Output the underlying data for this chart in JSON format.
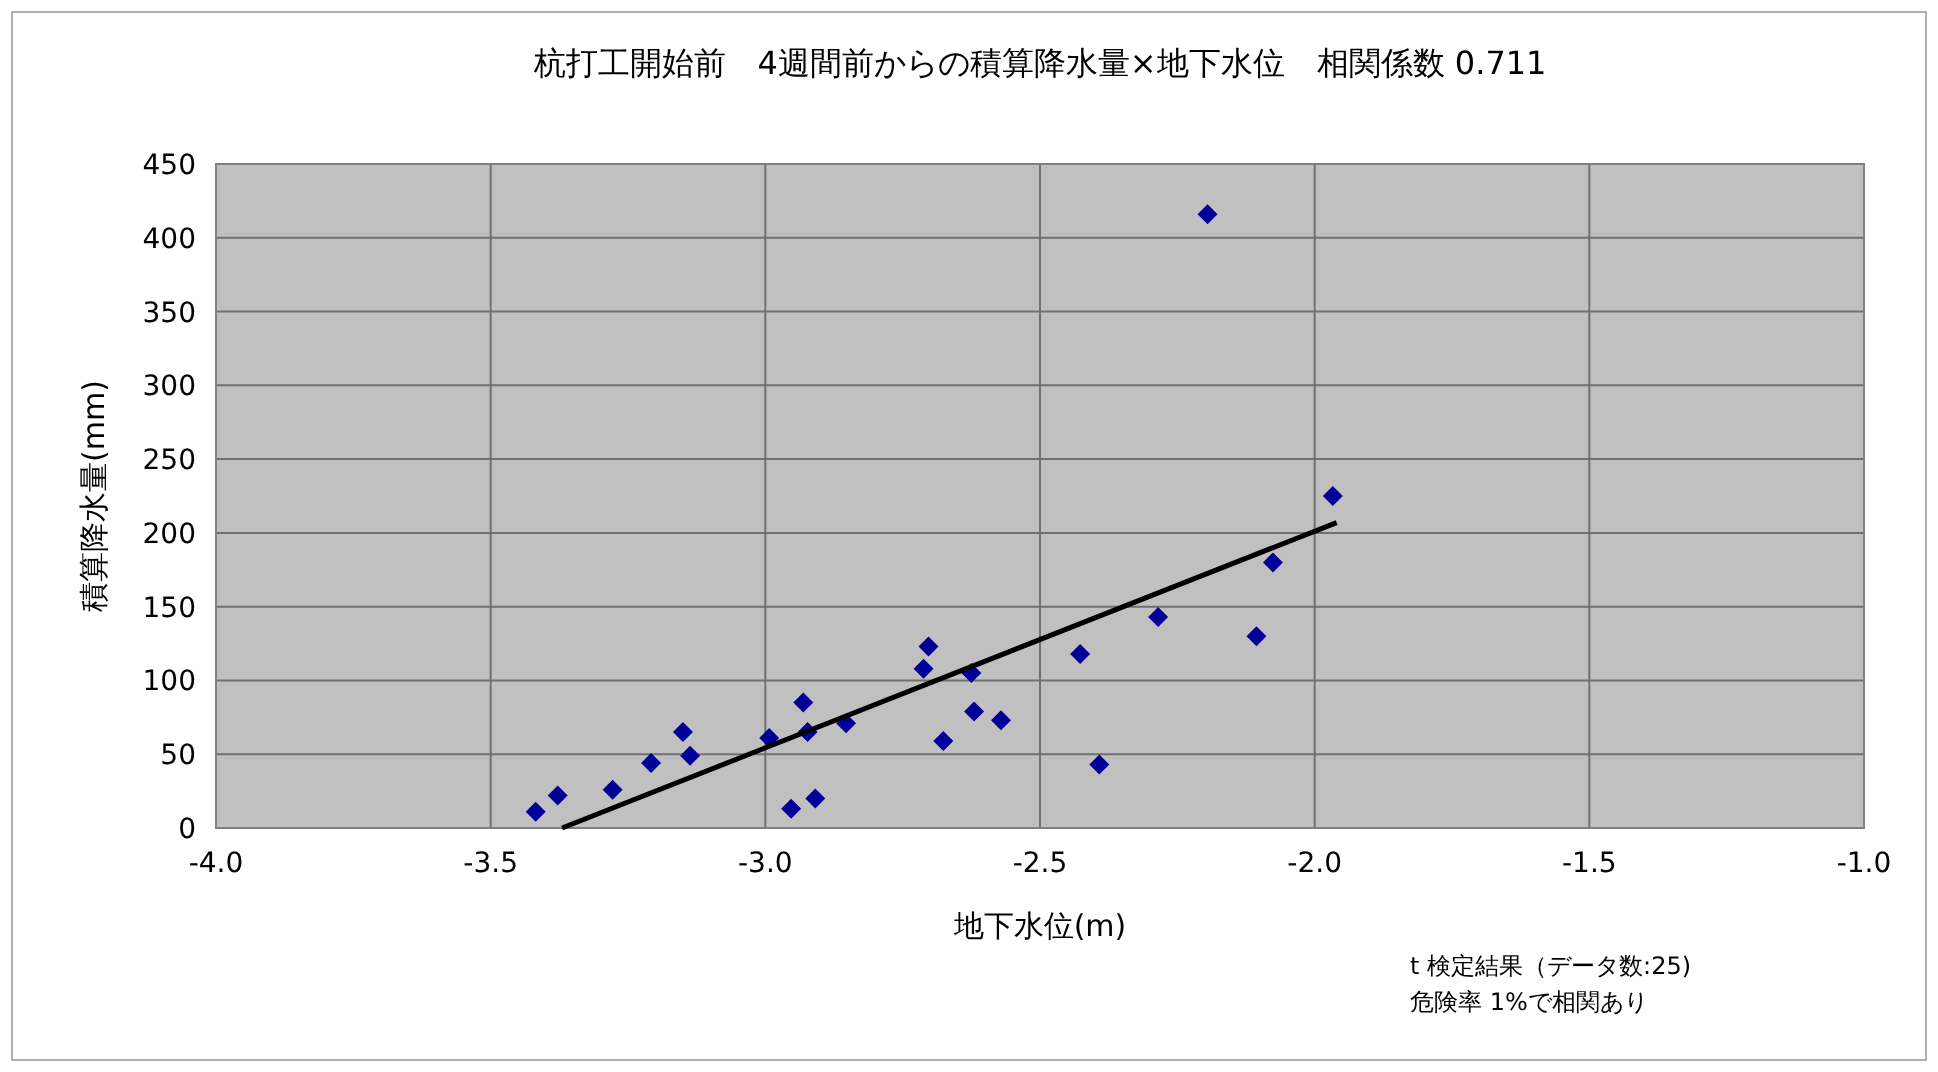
{
  "chart_data": {
    "type": "scatter",
    "title": "杭打工開始前　4週間前からの積算降水量×地下水位　相関係数 0.711",
    "xlabel": "地下水位(m)",
    "ylabel": "積算降水量(mm)",
    "annotations": [
      "t 検定結果（データ数:25)",
      "危険率 1%で相関あり"
    ],
    "x": [
      -3.418,
      -3.378,
      -3.278,
      -3.208,
      -3.15,
      -3.137,
      -2.993,
      -2.953,
      -2.931,
      -2.923,
      -2.909,
      -2.853,
      -2.712,
      -2.703,
      -2.676,
      -2.625,
      -2.62,
      -2.571,
      -2.427,
      -2.392,
      -2.285,
      -2.195,
      -2.106,
      -2.076,
      -1.967
    ],
    "series": [
      {
        "color": "#000099",
        "marker": "diamond",
        "values": [
          11,
          22,
          26,
          44,
          65,
          49,
          61,
          13,
          85,
          65,
          20,
          71,
          108,
          123,
          59,
          105,
          79,
          73,
          118,
          43,
          143,
          416,
          130,
          180,
          225
        ]
      },
      {
        "type": "line",
        "color": "#000000",
        "marker": "none",
        "x": [
          -3.37,
          -1.96
        ],
        "values": [
          0,
          207
        ]
      }
    ],
    "xlim": [
      -4,
      -1
    ],
    "xticks": [
      {
        "value": -4,
        "label": "-4.0"
      },
      {
        "value": -3.5,
        "label": "-3.5"
      },
      {
        "value": -3,
        "label": "-3.0"
      },
      {
        "value": -2.5,
        "label": "-2.5"
      },
      {
        "value": -2,
        "label": "-2.0"
      },
      {
        "value": -1.5,
        "label": "-1.5"
      },
      {
        "value": -1,
        "label": "-1.0"
      }
    ],
    "ylim": [
      0,
      450
    ],
    "yticks": [
      0,
      50,
      100,
      150,
      200,
      250,
      300,
      350,
      400,
      450
    ],
    "grid": true
  }
}
